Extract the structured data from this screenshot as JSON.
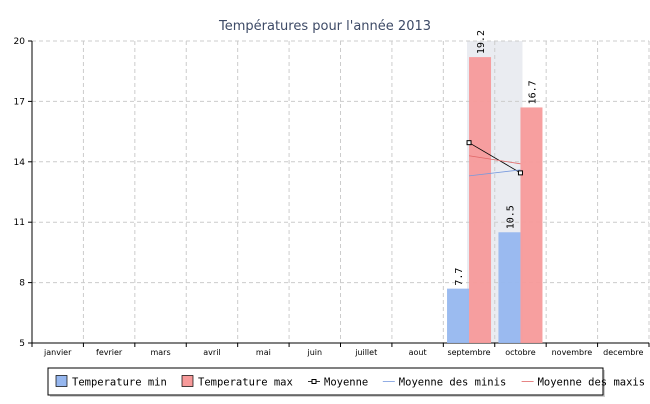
{
  "chart_data": {
    "type": "bar",
    "title": "Températures pour l'année 2013",
    "categories": [
      "janvier",
      "fevrier",
      "mars",
      "avril",
      "mai",
      "juin",
      "juillet",
      "aout",
      "septembre",
      "octobre",
      "novembre",
      "decembre"
    ],
    "ylim": [
      5,
      20
    ],
    "yticks": [
      5,
      8,
      11,
      14,
      17,
      20
    ],
    "grid": true,
    "legend_position": "bottom",
    "series": [
      {
        "name": "Temperature min",
        "type": "bar",
        "color": "#96b7ef",
        "values": [
          null,
          null,
          null,
          null,
          null,
          null,
          null,
          null,
          7.7,
          10.5,
          null,
          null
        ],
        "labels": [
          "",
          "",
          "",
          "",
          "",
          "",
          "",
          "",
          "7.7",
          "10.5",
          "",
          ""
        ]
      },
      {
        "name": "Temperature max",
        "type": "bar",
        "color": "#f79a9a",
        "values": [
          null,
          null,
          null,
          null,
          null,
          null,
          null,
          null,
          19.2,
          16.7,
          null,
          null
        ],
        "labels": [
          "",
          "",
          "",
          "",
          "",
          "",
          "",
          "",
          "19.2",
          "16.7",
          "",
          ""
        ]
      },
      {
        "name": "Moyenne",
        "type": "line",
        "color": "#000000",
        "marker": "square",
        "values": [
          null,
          null,
          null,
          null,
          null,
          null,
          null,
          null,
          14.95,
          13.45,
          null,
          null
        ]
      },
      {
        "name": "Moyenne des minis",
        "type": "line",
        "color": "#7799dd",
        "values": [
          null,
          null,
          null,
          null,
          null,
          null,
          null,
          null,
          13.3,
          13.6,
          null,
          null
        ]
      },
      {
        "name": "Moyenne des maxis",
        "type": "line",
        "color": "#e06666",
        "values": [
          null,
          null,
          null,
          null,
          null,
          null,
          null,
          null,
          14.3,
          13.9,
          null,
          null
        ]
      }
    ]
  }
}
